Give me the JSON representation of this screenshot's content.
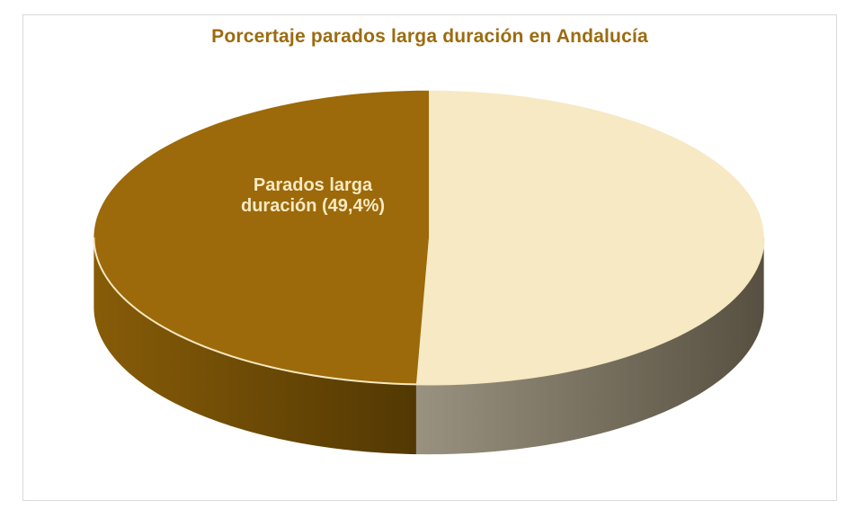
{
  "window": {
    "background_color": "#FFFFFF",
    "canvas_border_color": "#D9D9D9"
  },
  "chart_data": {
    "type": "pie",
    "effect": "3d",
    "title": "Porcertaje parados larga duración en Andalucía",
    "title_color": "#9C6B10",
    "legend": "none",
    "data_label_color": "#F7E9C3",
    "edge_highlight_color": "#F6E8C1",
    "slices": [
      {
        "label": "Parados larga duración",
        "value": 49.4,
        "color": "#9C6A0A",
        "side_gradient": [
          "#875C08",
          "#523803"
        ],
        "data_label_lines": [
          "Parados larga",
          "duración (49,4%)"
        ]
      },
      {
        "label": "",
        "value": 50.6,
        "color": "#F7E9C3",
        "side_gradient": [
          "#9A9280",
          "#575040"
        ]
      }
    ]
  }
}
